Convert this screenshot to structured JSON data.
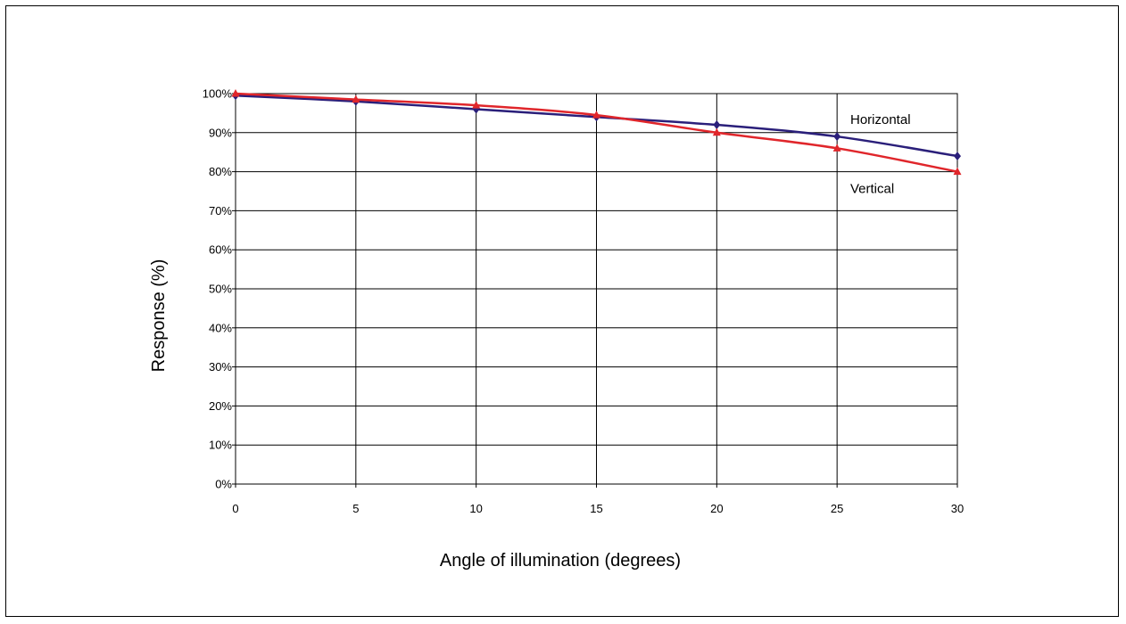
{
  "chart_data": {
    "type": "line",
    "title": "",
    "xlabel": "Angle of illumination (degrees)",
    "ylabel": "Response (%)",
    "x": [
      0,
      5,
      10,
      15,
      20,
      25,
      30
    ],
    "xlim": [
      0,
      30
    ],
    "ylim": [
      0,
      100
    ],
    "x_ticks": [
      "0",
      "5",
      "10",
      "15",
      "20",
      "25",
      "30"
    ],
    "y_ticks": [
      "0%",
      "10%",
      "20%",
      "30%",
      "40%",
      "50%",
      "60%",
      "70%",
      "80%",
      "90%",
      "100%"
    ],
    "grid": true,
    "series": [
      {
        "name": "Horizontal",
        "values": [
          99.5,
          98,
          96,
          94,
          92,
          89,
          84
        ],
        "color": "#2a1f7a",
        "marker": "diamond"
      },
      {
        "name": "Vertical",
        "values": [
          100,
          98.5,
          97,
          94.5,
          90,
          86,
          80
        ],
        "color": "#e0262b",
        "marker": "triangle"
      }
    ]
  }
}
